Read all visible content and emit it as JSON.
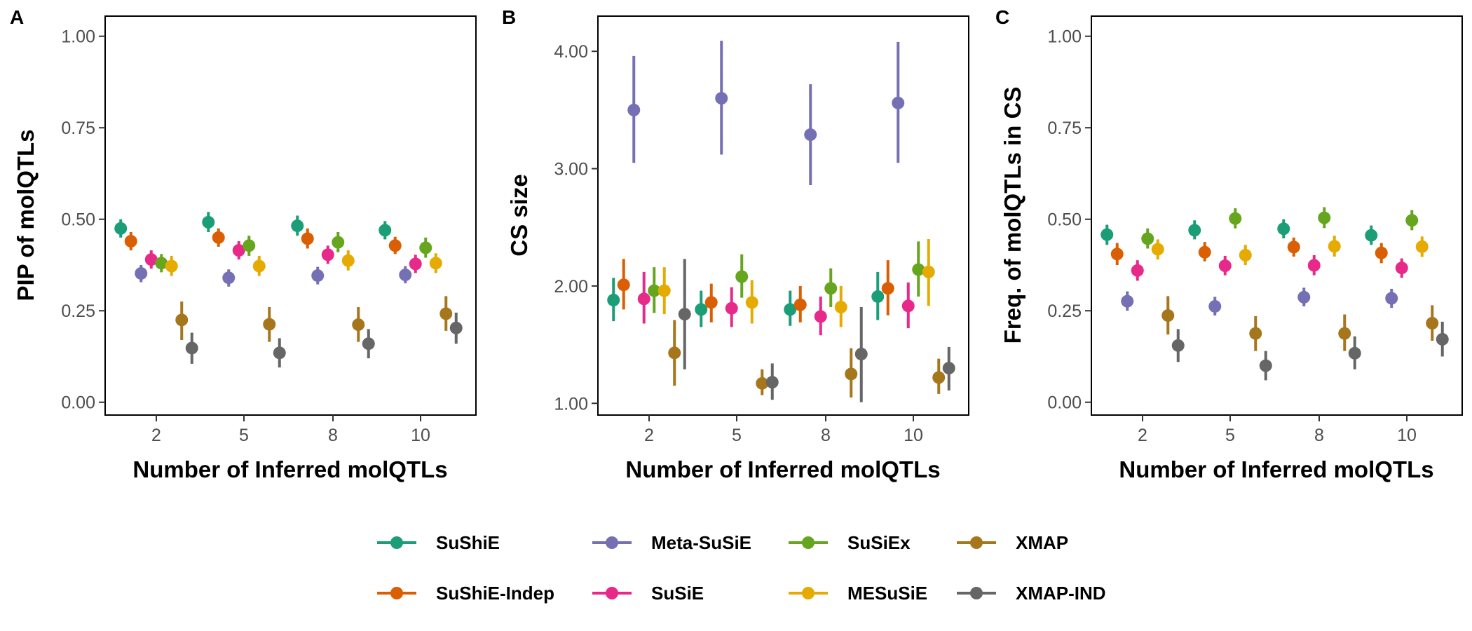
{
  "legend": {
    "position": "bottom",
    "items": [
      {
        "key": "SuShiE",
        "label": "SuShiE",
        "color": "#1B9E77"
      },
      {
        "key": "SuShiE-Indep",
        "label": "SuShiE-Indep",
        "color": "#D95F02"
      },
      {
        "key": "Meta-SuSiE",
        "label": "Meta-SuSiE",
        "color": "#7570B3"
      },
      {
        "key": "SuSiE",
        "label": "SuSiE",
        "color": "#E7298A"
      },
      {
        "key": "SuSiEx",
        "label": "SuSiEx",
        "color": "#66A61E"
      },
      {
        "key": "MESuSiE",
        "label": "MESuSiE",
        "color": "#E6AB02"
      },
      {
        "key": "XMAP",
        "label": "XMAP",
        "color": "#A6761D"
      },
      {
        "key": "XMAP-IND",
        "label": "XMAP-IND",
        "color": "#666666"
      }
    ]
  },
  "chart_data": [
    {
      "panel": "A",
      "type": "scatter",
      "subtype": "pointrange",
      "xlabel": "Number of Inferred molQTLs",
      "ylabel": "PIP of molQTLs",
      "categories": [
        "2",
        "5",
        "8",
        "10"
      ],
      "ylim": [
        -0.035,
        1.055
      ],
      "yticks": [
        "0.00",
        "0.25",
        "0.50",
        "0.75",
        "1.00"
      ],
      "ytick_values": [
        0,
        0.25,
        0.5,
        0.75,
        1.0
      ],
      "grid": false,
      "series": [
        {
          "name": "SuShiE",
          "values": [
            0.475,
            0.492,
            0.482,
            0.47
          ],
          "lower": [
            0.45,
            0.465,
            0.455,
            0.445
          ],
          "upper": [
            0.5,
            0.52,
            0.51,
            0.495
          ]
        },
        {
          "name": "SuShiE-Indep",
          "values": [
            0.44,
            0.45,
            0.447,
            0.428
          ],
          "lower": [
            0.415,
            0.425,
            0.42,
            0.405
          ],
          "upper": [
            0.465,
            0.475,
            0.475,
            0.452
          ]
        },
        {
          "name": "Meta-SuSiE",
          "values": [
            0.352,
            0.34,
            0.346,
            0.348
          ],
          "lower": [
            0.328,
            0.316,
            0.322,
            0.325
          ],
          "upper": [
            0.375,
            0.363,
            0.37,
            0.372
          ]
        },
        {
          "name": "SuSiE",
          "values": [
            0.39,
            0.415,
            0.403,
            0.378
          ],
          "lower": [
            0.365,
            0.39,
            0.378,
            0.353
          ],
          "upper": [
            0.415,
            0.44,
            0.428,
            0.403
          ]
        },
        {
          "name": "SuSiEx",
          "values": [
            0.38,
            0.428,
            0.437,
            0.422
          ],
          "lower": [
            0.355,
            0.4,
            0.41,
            0.395
          ],
          "upper": [
            0.405,
            0.455,
            0.465,
            0.45
          ]
        },
        {
          "name": "MESuSiE",
          "values": [
            0.372,
            0.372,
            0.387,
            0.38
          ],
          "lower": [
            0.345,
            0.345,
            0.36,
            0.353
          ],
          "upper": [
            0.4,
            0.4,
            0.415,
            0.407
          ]
        },
        {
          "name": "XMAP",
          "values": [
            0.225,
            0.213,
            0.212,
            0.242
          ],
          "lower": [
            0.17,
            0.165,
            0.165,
            0.195
          ],
          "upper": [
            0.275,
            0.26,
            0.26,
            0.29
          ]
        },
        {
          "name": "XMAP-IND",
          "values": [
            0.148,
            0.135,
            0.16,
            0.203
          ],
          "lower": [
            0.105,
            0.095,
            0.12,
            0.16
          ],
          "upper": [
            0.19,
            0.175,
            0.2,
            0.245
          ]
        }
      ]
    },
    {
      "panel": "B",
      "type": "scatter",
      "subtype": "pointrange",
      "xlabel": "Number of Inferred molQTLs",
      "ylabel": "CS size",
      "categories": [
        "2",
        "5",
        "8",
        "10"
      ],
      "ylim": [
        0.9,
        4.3
      ],
      "yticks": [
        "1.00",
        "2.00",
        "3.00",
        "4.00"
      ],
      "ytick_values": [
        1,
        2,
        3,
        4
      ],
      "grid": false,
      "series": [
        {
          "name": "SuShiE",
          "values": [
            1.88,
            1.8,
            1.8,
            1.91
          ],
          "lower": [
            1.7,
            1.65,
            1.66,
            1.71
          ],
          "upper": [
            2.07,
            1.96,
            1.96,
            2.12
          ]
        },
        {
          "name": "SuShiE-Indep",
          "values": [
            2.01,
            1.86,
            1.84,
            1.98
          ],
          "lower": [
            1.8,
            1.69,
            1.69,
            1.75
          ],
          "upper": [
            2.23,
            2.02,
            2.0,
            2.22
          ]
        },
        {
          "name": "Meta-SuSiE",
          "values": [
            3.5,
            3.6,
            3.29,
            3.56
          ],
          "lower": [
            3.05,
            3.12,
            2.86,
            3.05
          ],
          "upper": [
            3.96,
            4.09,
            3.72,
            4.08
          ]
        },
        {
          "name": "SuSiE",
          "values": [
            1.89,
            1.81,
            1.74,
            1.83
          ],
          "lower": [
            1.68,
            1.65,
            1.58,
            1.64
          ],
          "upper": [
            2.12,
            1.99,
            1.91,
            2.03
          ]
        },
        {
          "name": "SuSiEx",
          "values": [
            1.96,
            2.08,
            1.98,
            2.14
          ],
          "lower": [
            1.77,
            1.9,
            1.82,
            1.91
          ],
          "upper": [
            2.16,
            2.27,
            2.15,
            2.38
          ]
        },
        {
          "name": "MESuSiE",
          "values": [
            1.96,
            1.86,
            1.82,
            2.12
          ],
          "lower": [
            1.76,
            1.68,
            1.65,
            1.83
          ],
          "upper": [
            2.16,
            2.05,
            2.0,
            2.4
          ]
        },
        {
          "name": "XMAP",
          "values": [
            1.43,
            1.17,
            1.25,
            1.22
          ],
          "lower": [
            1.15,
            1.07,
            1.05,
            1.08
          ],
          "upper": [
            1.71,
            1.29,
            1.47,
            1.38
          ]
        },
        {
          "name": "XMAP-IND",
          "values": [
            1.76,
            1.18,
            1.42,
            1.3
          ],
          "lower": [
            1.29,
            1.03,
            1.01,
            1.11
          ],
          "upper": [
            2.23,
            1.34,
            1.82,
            1.48
          ]
        }
      ]
    },
    {
      "panel": "C",
      "type": "scatter",
      "subtype": "pointrange",
      "xlabel": "Number of Inferred molQTLs",
      "ylabel": "Freq. of molQTLs in CS",
      "categories": [
        "2",
        "5",
        "8",
        "10"
      ],
      "ylim": [
        -0.035,
        1.055
      ],
      "yticks": [
        "0.00",
        "0.25",
        "0.50",
        "0.75",
        "1.00"
      ],
      "ytick_values": [
        0,
        0.25,
        0.5,
        0.75,
        1.0
      ],
      "grid": false,
      "series": [
        {
          "name": "SuShiE",
          "values": [
            0.458,
            0.47,
            0.474,
            0.456
          ],
          "lower": [
            0.43,
            0.445,
            0.448,
            0.43
          ],
          "upper": [
            0.485,
            0.497,
            0.5,
            0.483
          ]
        },
        {
          "name": "SuShiE-Indep",
          "values": [
            0.405,
            0.41,
            0.424,
            0.408
          ],
          "lower": [
            0.375,
            0.385,
            0.398,
            0.38
          ],
          "upper": [
            0.435,
            0.438,
            0.45,
            0.435
          ]
        },
        {
          "name": "Meta-SuSiE",
          "values": [
            0.276,
            0.262,
            0.287,
            0.284
          ],
          "lower": [
            0.25,
            0.237,
            0.262,
            0.258
          ],
          "upper": [
            0.303,
            0.288,
            0.313,
            0.31
          ]
        },
        {
          "name": "SuSiE",
          "values": [
            0.36,
            0.373,
            0.374,
            0.367
          ],
          "lower": [
            0.332,
            0.347,
            0.347,
            0.34
          ],
          "upper": [
            0.388,
            0.4,
            0.402,
            0.393
          ]
        },
        {
          "name": "SuSiEx",
          "values": [
            0.447,
            0.502,
            0.504,
            0.497
          ],
          "lower": [
            0.42,
            0.475,
            0.476,
            0.47
          ],
          "upper": [
            0.475,
            0.53,
            0.533,
            0.525
          ]
        },
        {
          "name": "MESuSiE",
          "values": [
            0.418,
            0.402,
            0.426,
            0.425
          ],
          "lower": [
            0.39,
            0.375,
            0.398,
            0.397
          ],
          "upper": [
            0.445,
            0.43,
            0.455,
            0.453
          ]
        },
        {
          "name": "XMAP",
          "values": [
            0.237,
            0.188,
            0.188,
            0.216
          ],
          "lower": [
            0.185,
            0.14,
            0.14,
            0.168
          ],
          "upper": [
            0.29,
            0.235,
            0.24,
            0.265
          ]
        },
        {
          "name": "XMAP-IND",
          "values": [
            0.155,
            0.1,
            0.134,
            0.172
          ],
          "lower": [
            0.11,
            0.06,
            0.09,
            0.125
          ],
          "upper": [
            0.2,
            0.14,
            0.18,
            0.22
          ]
        }
      ]
    }
  ]
}
